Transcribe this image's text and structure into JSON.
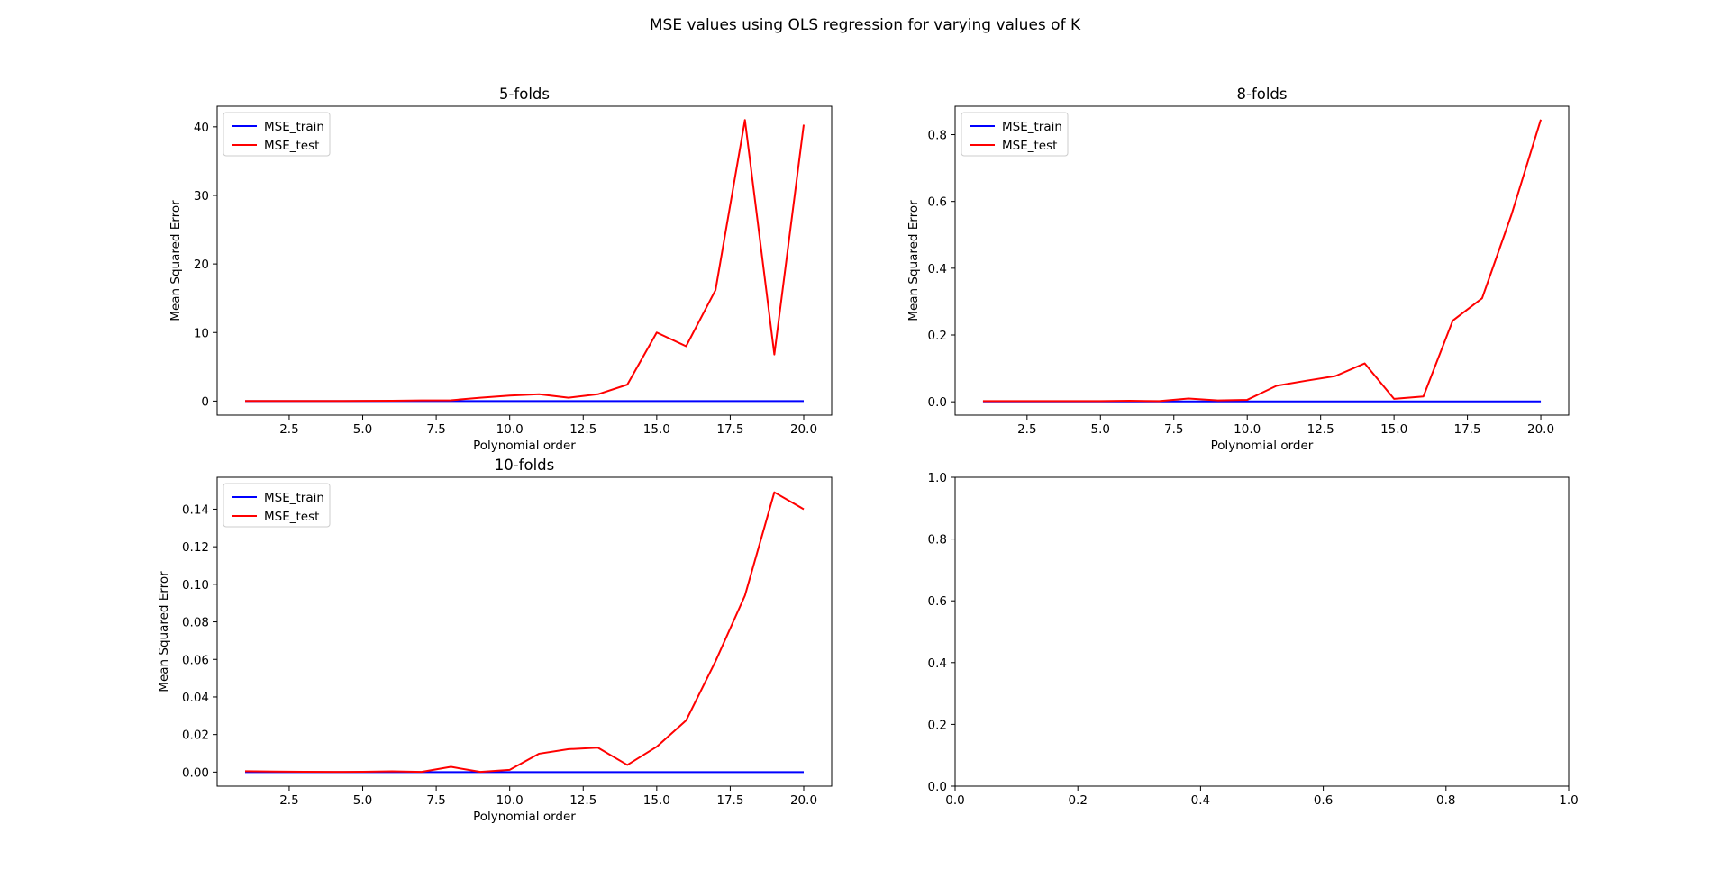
{
  "figure": {
    "suptitle": "MSE values using OLS regression for varying values of K"
  },
  "chart_data": [
    {
      "type": "line",
      "title": "5-folds",
      "xlabel": "Polynomial order",
      "ylabel": "Mean Squared Error",
      "xlim": [
        0.05,
        20.95
      ],
      "ylim": [
        -2.05,
        43.0
      ],
      "xticks": [
        2.5,
        5.0,
        7.5,
        10.0,
        12.5,
        15.0,
        17.5,
        20.0
      ],
      "xtick_labels": [
        "2.5",
        "5.0",
        "7.5",
        "10.0",
        "12.5",
        "15.0",
        "17.5",
        "20.0"
      ],
      "yticks": [
        0,
        10,
        20,
        30,
        40
      ],
      "ytick_labels": [
        "0",
        "10",
        "20",
        "30",
        "40"
      ],
      "legend": "top-left",
      "x": [
        1,
        2,
        3,
        4,
        5,
        6,
        7,
        8,
        9,
        10,
        11,
        12,
        13,
        14,
        15,
        16,
        17,
        18,
        19,
        20
      ],
      "series": [
        {
          "name": "MSE_train",
          "color": "#0000ff",
          "values": [
            0.01,
            0.01,
            0.01,
            0.01,
            0.01,
            0.01,
            0.01,
            0.01,
            0.01,
            0.01,
            0.01,
            0.01,
            0.01,
            0.01,
            0.01,
            0.01,
            0.01,
            0.01,
            0.01,
            0.01
          ]
        },
        {
          "name": "MSE_test",
          "color": "#ff0000",
          "values": [
            0.02,
            0.02,
            0.02,
            0.02,
            0.03,
            0.05,
            0.1,
            0.12,
            0.5,
            0.8,
            1.0,
            0.5,
            1.0,
            2.4,
            10.0,
            8.0,
            16.2,
            41.0,
            6.8,
            40.3
          ]
        }
      ]
    },
    {
      "type": "line",
      "title": "8-folds",
      "xlabel": "Polynomial order",
      "ylabel": "Mean Squared Error",
      "xlim": [
        0.05,
        20.95
      ],
      "ylim": [
        -0.04,
        0.885
      ],
      "xticks": [
        2.5,
        5.0,
        7.5,
        10.0,
        12.5,
        15.0,
        17.5,
        20.0
      ],
      "xtick_labels": [
        "2.5",
        "5.0",
        "7.5",
        "10.0",
        "12.5",
        "15.0",
        "17.5",
        "20.0"
      ],
      "yticks": [
        0.0,
        0.2,
        0.4,
        0.6,
        0.8
      ],
      "ytick_labels": [
        "0.0",
        "0.2",
        "0.4",
        "0.6",
        "0.8"
      ],
      "legend": "top-left",
      "x": [
        1,
        2,
        3,
        4,
        5,
        6,
        7,
        8,
        9,
        10,
        11,
        12,
        13,
        14,
        15,
        16,
        17,
        18,
        19,
        20
      ],
      "series": [
        {
          "name": "MSE_train",
          "color": "#0000ff",
          "values": [
            0.001,
            0.001,
            0.001,
            0.001,
            0.001,
            0.001,
            0.001,
            0.001,
            0.001,
            0.001,
            0.001,
            0.001,
            0.001,
            0.001,
            0.001,
            0.001,
            0.001,
            0.001,
            0.001,
            0.001
          ]
        },
        {
          "name": "MSE_test",
          "color": "#ff0000",
          "values": [
            0.002,
            0.002,
            0.002,
            0.002,
            0.002,
            0.003,
            0.002,
            0.01,
            0.004,
            0.006,
            0.048,
            0.063,
            0.077,
            0.115,
            0.009,
            0.016,
            0.243,
            0.31,
            0.56,
            0.845
          ]
        }
      ]
    },
    {
      "type": "line",
      "title": "10-folds",
      "xlabel": "Polynomial order",
      "ylabel": "Mean Squared Error",
      "xlim": [
        0.05,
        20.95
      ],
      "ylim": [
        -0.0075,
        0.157
      ],
      "xticks": [
        2.5,
        5.0,
        7.5,
        10.0,
        12.5,
        15.0,
        17.5,
        20.0
      ],
      "xtick_labels": [
        "2.5",
        "5.0",
        "7.5",
        "10.0",
        "12.5",
        "15.0",
        "17.5",
        "20.0"
      ],
      "yticks": [
        0.0,
        0.02,
        0.04,
        0.06,
        0.08,
        0.1,
        0.12,
        0.14
      ],
      "ytick_labels": [
        "0.00",
        "0.02",
        "0.04",
        "0.06",
        "0.08",
        "0.10",
        "0.12",
        "0.14"
      ],
      "legend": "top-left",
      "x": [
        1,
        2,
        3,
        4,
        5,
        6,
        7,
        8,
        9,
        10,
        11,
        12,
        13,
        14,
        15,
        16,
        17,
        18,
        19,
        20
      ],
      "series": [
        {
          "name": "MSE_train",
          "color": "#0000ff",
          "values": [
            0.0,
            0.0,
            0.0,
            0.0,
            0.0,
            0.0,
            0.0,
            0.0,
            0.0,
            0.0,
            0.0,
            0.0,
            0.0,
            0.0,
            0.0,
            0.0,
            0.0,
            0.0,
            0.0,
            0.0
          ]
        },
        {
          "name": "MSE_test",
          "color": "#ff0000",
          "values": [
            0.0005,
            0.0003,
            0.0002,
            0.0001,
            0.0002,
            0.0004,
            0.0001,
            0.0028,
            0.0001,
            0.0012,
            0.0098,
            0.0122,
            0.013,
            0.0038,
            0.0135,
            0.0275,
            0.059,
            0.094,
            0.149,
            0.14
          ]
        }
      ]
    },
    {
      "type": "line",
      "title": "",
      "xlabel": "",
      "ylabel": "",
      "xlim": [
        0.0,
        1.0
      ],
      "ylim": [
        0.0,
        1.0
      ],
      "xticks": [
        0.0,
        0.2,
        0.4,
        0.6,
        0.8,
        1.0
      ],
      "xtick_labels": [
        "0.0",
        "0.2",
        "0.4",
        "0.6",
        "0.8",
        "1.0"
      ],
      "yticks": [
        0.0,
        0.2,
        0.4,
        0.6,
        0.8,
        1.0
      ],
      "ytick_labels": [
        "0.0",
        "0.2",
        "0.4",
        "0.6",
        "0.8",
        "1.0"
      ],
      "x": [],
      "series": []
    }
  ]
}
